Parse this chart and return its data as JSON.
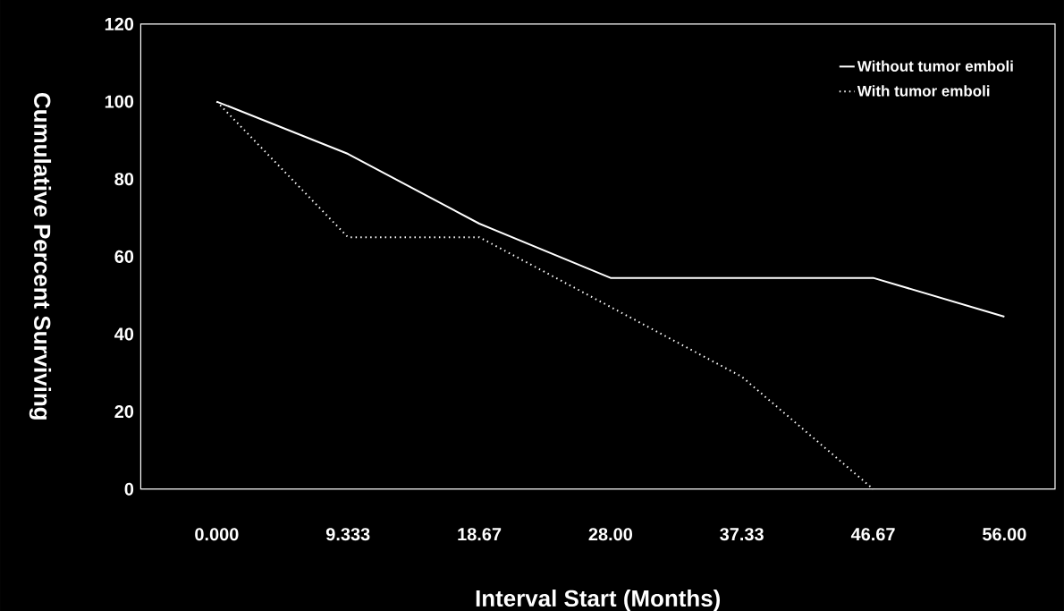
{
  "chart_data": {
    "type": "line",
    "xlabel": "Interval Start (Months)",
    "ylabel": "Cumulative Percent Surviving",
    "xlim": [
      -5.4,
      59.6
    ],
    "ylim": [
      0,
      120
    ],
    "xticks": [
      {
        "value": 0,
        "label": "0.000"
      },
      9.333,
      18.67,
      {
        "value": 28,
        "label": "28.00"
      },
      37.33,
      46.67,
      {
        "value": 56,
        "label": "56.00"
      }
    ],
    "yticks": [
      0,
      20,
      40,
      60,
      80,
      100,
      120
    ],
    "x": [
      0,
      9.333,
      18.67,
      28,
      37.33,
      46.67,
      56
    ],
    "series": [
      {
        "name": "Without tumor emboli",
        "color": "#ffffff",
        "line_style": "solid",
        "values": [
          100,
          86.5,
          68.5,
          54.5,
          54.5,
          54.5,
          44.5
        ]
      },
      {
        "name": "With tumor emboli",
        "color": "#ffffff",
        "line_style": "dotted",
        "x": [
          0,
          9.333,
          18.67,
          28,
          37.33,
          46.67
        ],
        "values": [
          100,
          65,
          65,
          47,
          29,
          0
        ]
      }
    ],
    "legend": "top right",
    "grid": false,
    "marker": "none"
  }
}
